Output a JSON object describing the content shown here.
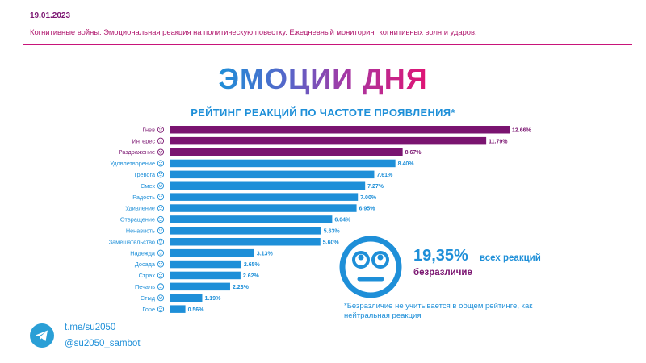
{
  "header": {
    "date": "19.01.2023",
    "subtitle": "Когнитивные войны. Эмоциональная реакция на политическую повестку. Ежедневный мониторинг когнитивных волн и ударов."
  },
  "title": "ЭМОЦИИ ДНЯ",
  "chart_data": {
    "type": "bar",
    "orientation": "horizontal",
    "title": "РЕЙТИНГ РЕАКЦИЙ ПО ЧАСТОТЕ ПРОЯВЛЕНИЯ*",
    "categories": [
      "Гнев",
      "Интерес",
      "Раздражение",
      "Удовлетворение",
      "Тревога",
      "Смех",
      "Радость",
      "Удивление",
      "Отвращение",
      "Ненависть",
      "Замешательство",
      "Надежда",
      "Досада",
      "Страх",
      "Печаль",
      "Стыд",
      "Горе"
    ],
    "values": [
      12.66,
      11.79,
      8.67,
      8.4,
      7.61,
      7.27,
      7.0,
      6.95,
      6.04,
      5.63,
      5.6,
      3.13,
      2.65,
      2.62,
      2.23,
      1.19,
      0.56
    ],
    "value_labels": [
      "12.66%",
      "11.79%",
      "8.67%",
      "8.40%",
      "7.61%",
      "7.27%",
      "7.00%",
      "6.95%",
      "6.04%",
      "5.63%",
      "5.60%",
      "3.13%",
      "2.65%",
      "2.62%",
      "2.23%",
      "1.19%",
      "0.56%"
    ],
    "bar_colors": [
      "#7a1470",
      "#7a1470",
      "#7a1470",
      "#1e8fd8",
      "#1e8fd8",
      "#1e8fd8",
      "#1e8fd8",
      "#1e8fd8",
      "#1e8fd8",
      "#1e8fd8",
      "#1e8fd8",
      "#1e8fd8",
      "#1e8fd8",
      "#1e8fd8",
      "#1e8fd8",
      "#1e8fd8",
      "#1e8fd8"
    ],
    "label_colors": [
      "#7a1470",
      "#7a1470",
      "#7a1470",
      "#1e8fd8",
      "#1e8fd8",
      "#1e8fd8",
      "#1e8fd8",
      "#1e8fd8",
      "#1e8fd8",
      "#1e8fd8",
      "#1e8fd8",
      "#1e8fd8",
      "#1e8fd8",
      "#1e8fd8",
      "#1e8fd8",
      "#1e8fd8",
      "#1e8fd8"
    ],
    "icons": [
      "angry-face-icon",
      "interest-icon",
      "irritated-face-icon",
      "satisfied-face-icon",
      "anxious-face-icon",
      "laughing-face-icon",
      "joy-face-icon",
      "surprised-face-icon",
      "disgusted-face-icon",
      "hate-face-icon",
      "confused-face-icon",
      "hope-icon",
      "annoyed-face-icon",
      "fear-face-icon",
      "sad-face-icon",
      "ashamed-face-icon",
      "grief-face-icon"
    ],
    "xlim": [
      0,
      12.66
    ],
    "grid": false,
    "legend": "none"
  },
  "indifference": {
    "value": "19,35%",
    "all_label": "всех реакций",
    "label": "безразличие",
    "icon": "neutral-face-icon",
    "note": "*Безразличие не учитывается в общем рейтинге, как нейтральная реакция"
  },
  "footer": {
    "channel": "t.me/su2050",
    "bot": "@su2050_sambot",
    "icon": "telegram-icon"
  },
  "colors": {
    "purple": "#7a1470",
    "blue": "#1e8fd8",
    "pink": "#e01473"
  }
}
